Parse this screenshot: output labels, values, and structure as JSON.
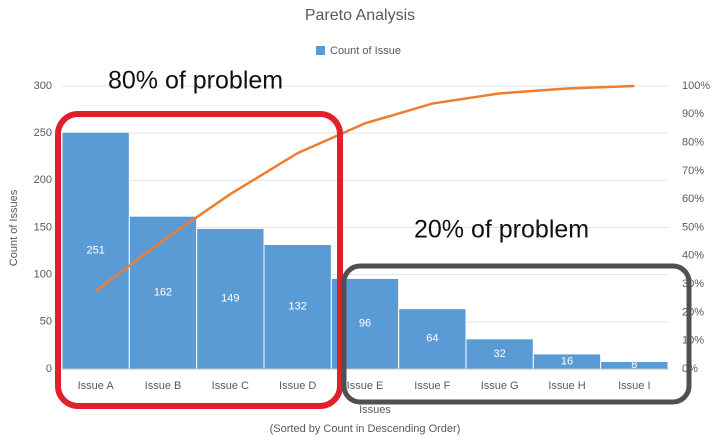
{
  "chart_data": {
    "type": "pareto",
    "title": "Pareto Analysis",
    "x_label": "Issues",
    "x_sublabel": "(Sorted by Count in Descending Order)",
    "y_label": "Count of Issues",
    "annotations": [
      "80% of problem",
      "20% of problem"
    ],
    "categories": [
      "Issue A",
      "Issue B",
      "Issue C",
      "Issue D",
      "Issue E",
      "Issue F",
      "Issue G",
      "Issue H",
      "Issue I"
    ],
    "series": [
      {
        "name": "Count of Issue",
        "color": "#5b9bd5",
        "values": [
          251,
          162,
          149,
          132,
          96,
          64,
          32,
          16,
          8
        ]
      },
      {
        "color": "#ed7d31",
        "axis": "y2",
        "values": [
          27.6,
          45.4,
          61.8,
          76.3,
          86.8,
          93.8,
          97.4,
          99.1,
          100
        ]
      }
    ],
    "ylim": [
      0,
      300
    ],
    "yticks": [
      0,
      50,
      100,
      150,
      200,
      250,
      300
    ],
    "y2lim": [
      0,
      100
    ],
    "y2ticks": [
      {
        "value": 0,
        "label": "0%"
      },
      {
        "value": 10,
        "label": "10%"
      },
      {
        "value": 20,
        "label": "20%"
      },
      {
        "value": 30,
        "label": "30%"
      },
      {
        "value": 40,
        "label": "40%"
      },
      {
        "value": 50,
        "label": "50%"
      },
      {
        "value": 60,
        "label": "60%"
      },
      {
        "value": 70,
        "label": "70%"
      },
      {
        "value": 80,
        "label": "80%"
      },
      {
        "value": 90,
        "label": "90%"
      },
      {
        "value": 100,
        "label": "100%"
      }
    ],
    "grid": true,
    "legend": "top"
  }
}
